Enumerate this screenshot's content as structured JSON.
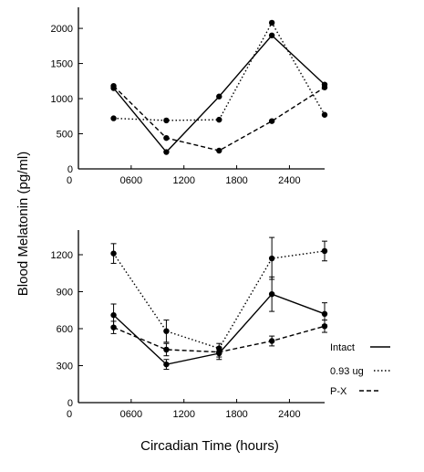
{
  "figure": {
    "ylabel": "Blood Melatonin (pg/ml)",
    "xlabel": "Circadian Time (hours)"
  },
  "legend": [
    {
      "label": "Intact",
      "style": "solid"
    },
    {
      "label": "0.93 ug",
      "style": "dotted"
    },
    {
      "label": "P-X",
      "style": "dashed"
    }
  ],
  "chart_data": [
    {
      "type": "line",
      "panel": "top",
      "x": [
        "0400",
        "1000",
        "1600",
        "2200",
        "2800"
      ],
      "xticks": [
        "0",
        "0600",
        "1200",
        "1800",
        "2400"
      ],
      "yticks": [
        0,
        500,
        1000,
        1500,
        2000
      ],
      "ylim": [
        0,
        2300
      ],
      "grid": false,
      "series": [
        {
          "name": "Intact",
          "style": "solid",
          "values": [
            1150,
            240,
            1030,
            1900,
            1200
          ]
        },
        {
          "name": "0.93 ug",
          "style": "dotted",
          "values": [
            720,
            690,
            700,
            2080,
            770
          ]
        },
        {
          "name": "P-X",
          "style": "dashed",
          "values": [
            1180,
            440,
            260,
            680,
            1160
          ]
        }
      ]
    },
    {
      "type": "line",
      "panel": "bottom",
      "x": [
        "0400",
        "1000",
        "1600",
        "2200",
        "2800"
      ],
      "xticks": [
        "0",
        "0600",
        "1200",
        "1800",
        "2400"
      ],
      "yticks": [
        0,
        300,
        600,
        900,
        1200
      ],
      "ylim": [
        0,
        1400
      ],
      "grid": false,
      "error_bars": true,
      "series": [
        {
          "name": "Intact",
          "style": "solid",
          "values": [
            710,
            310,
            400,
            880,
            720
          ],
          "errors": [
            90,
            40,
            50,
            140,
            90
          ]
        },
        {
          "name": "0.93 ug",
          "style": "dotted",
          "values": [
            1210,
            580,
            440,
            1170,
            1230
          ],
          "errors": [
            80,
            90,
            40,
            170,
            80
          ]
        },
        {
          "name": "P-X",
          "style": "dashed",
          "values": [
            610,
            430,
            410,
            500,
            620
          ],
          "errors": [
            50,
            50,
            40,
            40,
            50
          ]
        }
      ]
    }
  ]
}
